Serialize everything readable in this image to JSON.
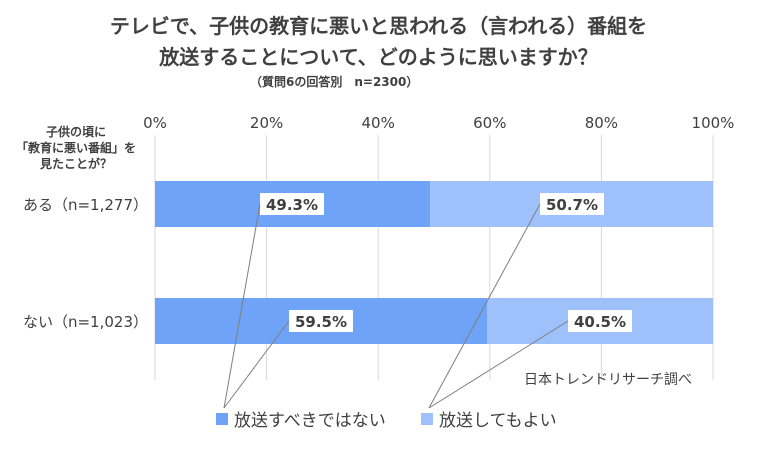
{
  "title_line1": "テレビで、子供の教育に悪いと思われる（言われる）番組を",
  "title_line2": "放送することについて、どのように思いますか？",
  "subtitle": "（質問6の回答別　n=2300）",
  "y_axis_title": [
    "子供の頃に",
    "「教育に悪い番組」を",
    "見たことが？"
  ],
  "source_note": "日本トレンドリサーチ調べ",
  "colors": {
    "series1": "#6fa3f8",
    "series2": "#9ec0fb"
  },
  "chart_data": {
    "type": "bar",
    "orientation": "horizontal",
    "stacked": "percent",
    "categories": [
      "ある（n=1,277）",
      "ない（n=1,023）"
    ],
    "series": [
      {
        "name": "放送すべきではない",
        "values": [
          49.3,
          59.5
        ],
        "labels": [
          "49.3%",
          "59.5%"
        ]
      },
      {
        "name": "放送してもよい",
        "values": [
          50.7,
          40.5
        ],
        "labels": [
          "50.7%",
          "40.5%"
        ]
      }
    ],
    "xlim": [
      0,
      100
    ],
    "xticks": [
      "0%",
      "20%",
      "40%",
      "60%",
      "80%",
      "100%"
    ],
    "grid": true,
    "legend": "bottom"
  }
}
